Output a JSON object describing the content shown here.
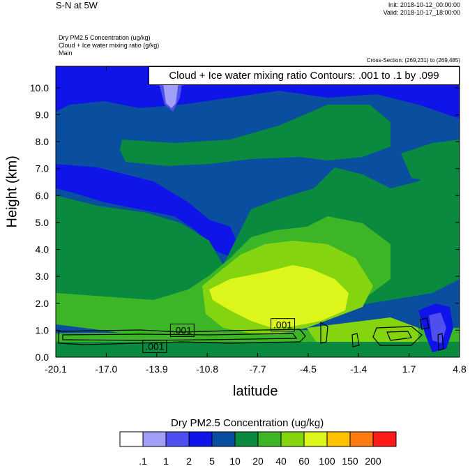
{
  "header": {
    "title": "S-N at 5W",
    "init": "Init: 2018-10-12_00:00:00",
    "valid": "Valid: 2018-10-17_18:00:00",
    "field1": "Dry PM2.5 Concentration   (ug/kg)",
    "field2": "Cloud + Ice water mixing ratio   (g/kg)",
    "field3": "Main",
    "cross_section": "Cross-Section: (269,231) to (269,485)"
  },
  "contour_legend": "Cloud + Ice water mixing ratio Contours: .001 to .1 by .099",
  "colors": {
    "c0": "#ffffff",
    "c1": "#a0a0f7",
    "c2": "#4f4ff0",
    "c3": "#0f14e8",
    "c4": "#0a4f9f",
    "c5": "#0a8a3f",
    "c6": "#3cb527",
    "c7": "#85d410",
    "c8": "#dcf51a",
    "c9": "#ffc000",
    "c10": "#ff7a10",
    "c11": "#ff1a1a"
  },
  "chart_data": {
    "type": "heatmap",
    "title": "S-N at 5W",
    "xlabel": "latitude",
    "ylabel": "Height (km)",
    "x_ticks": [
      "-20.1",
      "-17.0",
      "-13.9",
      "-10.8",
      "-7.7",
      "-4.5",
      "-1.4",
      "1.7",
      "4.8"
    ],
    "x_range": [
      -20.1,
      4.8
    ],
    "y_ticks": [
      "0.0",
      "1.0",
      "2.0",
      "3.0",
      "4.0",
      "5.0",
      "6.0",
      "7.0",
      "8.0",
      "9.0",
      "10.0"
    ],
    "y_range": [
      0.0,
      10.8
    ],
    "colorbar": {
      "title": "Dry PM2.5 Concentration  (ug/kg)",
      "labels": [
        ".1",
        "1",
        "2",
        "5",
        "10",
        "20",
        "40",
        "60",
        "100",
        "150",
        "200"
      ],
      "colors": [
        "#ffffff",
        "#a0a0f7",
        "#4f4ff0",
        "#0f14e8",
        "#0a4f9f",
        "#0a8a3f",
        "#3cb527",
        "#85d410",
        "#dcf51a",
        "#ffc000",
        "#ff7a10",
        "#ff1a1a"
      ]
    },
    "contour_labels": [
      ".001",
      ".001",
      ".001"
    ],
    "contour_label_positions": [
      [
        -12.3,
        1.0
      ],
      [
        -14.0,
        0.4
      ],
      [
        -6.1,
        1.2
      ]
    ]
  }
}
